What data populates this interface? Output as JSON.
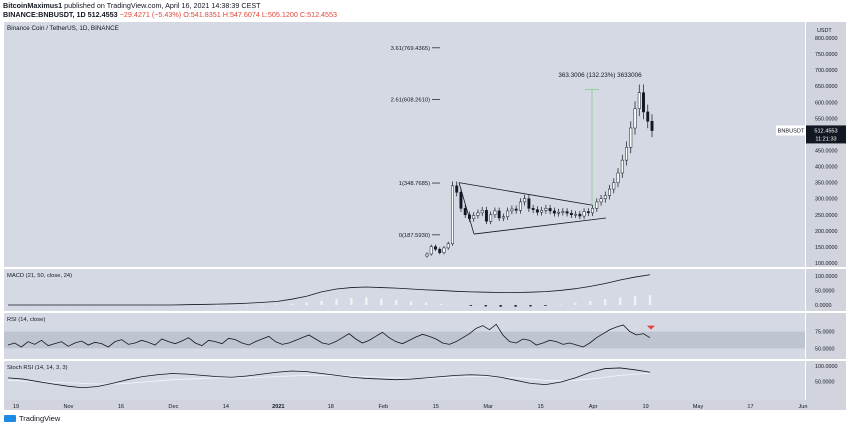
{
  "header": {
    "author": "BitcoinMaximus1",
    "published": "published on TradingView.com, April 16, 2021 14:38:39 CEST",
    "symbol_line": "BINANCE:BNBUSDT, 1D 512.4553",
    "change": "−29.4271 (−5.43%)",
    "ohlc": "O:541.8351 H:547.6074 L:505.1200 C:512.4553"
  },
  "footer": {
    "brand": "TradingView"
  },
  "colors": {
    "pane_bg": "#d5d9e3",
    "axis_bg": "#d1d4dc",
    "rsi_band": "#bfc4d1",
    "down": "#e0463b",
    "candle": "#131722",
    "hist_pos": "#f2f2f5",
    "hist_neg": "#2a2e39"
  },
  "chart_data": {
    "type": "candlestick",
    "title": "Binance Coin / TetherUS, 1D, BINANCE",
    "price_axis_unit": "USDT",
    "yticks": [
      "800.0000",
      "750.0000",
      "700.0000",
      "650.0000",
      "600.0000",
      "550.0000",
      "500.0000",
      "450.0000",
      "400.0000",
      "350.0000",
      "300.0000",
      "250.0000",
      "200.0000",
      "150.0000",
      "100.0000"
    ],
    "xticks": [
      "19",
      "Nov",
      "16",
      "Dec",
      "14",
      "2021",
      "18",
      "Feb",
      "15",
      "Mar",
      "15",
      "Apr",
      "19",
      "May",
      "17",
      "Jun"
    ],
    "last_price_label": "BNBUSDT",
    "last_price": "512.4553",
    "countdown": "11:21:33",
    "fib_levels": [
      {
        "label": "3.61(769.4365)",
        "price": 769.4365
      },
      {
        "label": "2.61(608.2610)",
        "price": 608.261
      },
      {
        "label": "1(348.7685)",
        "price": 348.7685
      },
      {
        "label": "0(187.5930)",
        "price": 187.593
      }
    ],
    "measure_label": "363.3006 (132.23%) 3633006",
    "closes": [
      128,
      151,
      143,
      132,
      147,
      160,
      340,
      320,
      270,
      250,
      238,
      248,
      256,
      264,
      230,
      250,
      262,
      240,
      244,
      262,
      268,
      264,
      290,
      300,
      270,
      266,
      258,
      264,
      270,
      262,
      255,
      258,
      260,
      255,
      250,
      252,
      246,
      260,
      256,
      270,
      290,
      300,
      310,
      330,
      350,
      380,
      420,
      460,
      520,
      580,
      630,
      570,
      541,
      512
    ],
    "macd": {
      "label": "MACD (21, 50, close, 24)",
      "ticks": [
        "100.0000",
        "50.0000",
        "0.0000"
      ],
      "line": [
        0,
        0,
        0,
        0,
        0,
        0,
        0,
        0,
        0,
        0,
        0,
        0,
        1,
        2,
        3,
        4,
        6,
        9,
        12,
        20,
        30,
        45,
        55,
        60,
        62,
        60,
        58,
        55,
        52,
        50,
        47,
        45,
        44,
        43,
        43,
        44,
        46,
        50,
        56,
        64,
        74,
        86,
        96,
        104
      ],
      "hist": [
        0,
        0,
        0,
        0,
        0,
        0,
        0,
        0,
        0,
        0,
        0,
        0,
        0,
        0,
        0,
        0,
        0,
        1,
        2,
        4,
        8,
        14,
        20,
        24,
        26,
        22,
        18,
        12,
        8,
        4,
        0,
        -3,
        -5,
        -6,
        -6,
        -5,
        -3,
        2,
        8,
        14,
        20,
        26,
        30,
        34
      ]
    },
    "rsi": {
      "label": "RSI (14, close)",
      "ticks": [
        "75.0000",
        "50.0000"
      ],
      "values": [
        55,
        58,
        52,
        60,
        56,
        62,
        54,
        57,
        60,
        53,
        58,
        61,
        55,
        59,
        57,
        52,
        60,
        63,
        56,
        58,
        62,
        59,
        55,
        64,
        60,
        57,
        61,
        66,
        58,
        54,
        62,
        60,
        57,
        65,
        63,
        58,
        55,
        60,
        64,
        68,
        60,
        56,
        58,
        62,
        66,
        70,
        64,
        58,
        56,
        60,
        66,
        72,
        64,
        58,
        62,
        68,
        74,
        66,
        60,
        57,
        62,
        67,
        71,
        68,
        64,
        58,
        56,
        60,
        66,
        72,
        80,
        84,
        78,
        86,
        70,
        60,
        58,
        64,
        62,
        55,
        58,
        62,
        60,
        56,
        58,
        55,
        52,
        58,
        66,
        72,
        78,
        82,
        85,
        75,
        70,
        72,
        66
      ]
    },
    "stoch": {
      "label": "Stoch RSI (14, 14, 3, 3)",
      "ticks": [
        "100.0000",
        "50.0000"
      ],
      "k": [
        62,
        58,
        50,
        42,
        35,
        30,
        34,
        44,
        56,
        66,
        72,
        76,
        74,
        70,
        66,
        64,
        68,
        74,
        80,
        84,
        82,
        76,
        70,
        64,
        60,
        58,
        56,
        58,
        62,
        66,
        70,
        72,
        70,
        64,
        54,
        44,
        40,
        48,
        62,
        80,
        92,
        94,
        88,
        80
      ],
      "d": [
        54,
        52,
        50,
        48,
        46,
        44,
        42,
        42,
        44,
        48,
        52,
        56,
        58,
        60,
        62,
        62,
        62,
        64,
        66,
        68,
        70,
        70,
        70,
        68,
        66,
        64,
        62,
        60,
        60,
        62,
        64,
        66,
        66,
        64,
        62,
        58,
        54,
        52,
        54,
        58,
        64,
        70,
        74,
        76
      ]
    }
  }
}
